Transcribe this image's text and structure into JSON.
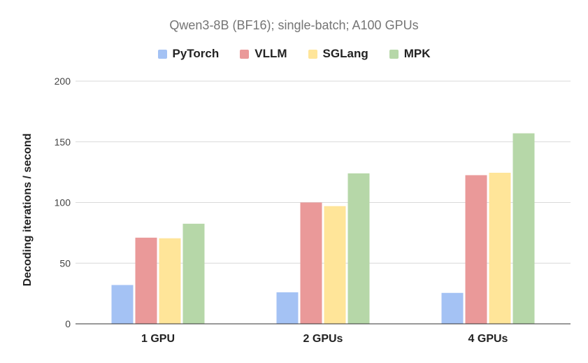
{
  "chart_data": {
    "type": "bar",
    "title": "Qwen3-8B (BF16); single-batch; A100 GPUs",
    "xlabel": "",
    "ylabel": "Decoding iterations / second",
    "ylim": [
      0,
      200
    ],
    "yticks": [
      0,
      50,
      100,
      150,
      200
    ],
    "grid": true,
    "legend_position": "top-center",
    "categories": [
      "1 GPU",
      "2 GPUs",
      "4 GPUs"
    ],
    "series": [
      {
        "name": "PyTorch",
        "color": "#a4c2f4",
        "values": [
          32,
          26,
          25.5
        ]
      },
      {
        "name": "VLLM",
        "color": "#ea9999",
        "values": [
          71,
          100,
          122.5
        ]
      },
      {
        "name": "SGLang",
        "color": "#ffe599",
        "values": [
          70.5,
          97,
          124.5
        ]
      },
      {
        "name": "MPK",
        "color": "#b6d7a8",
        "values": [
          82.5,
          124,
          157
        ]
      }
    ]
  }
}
